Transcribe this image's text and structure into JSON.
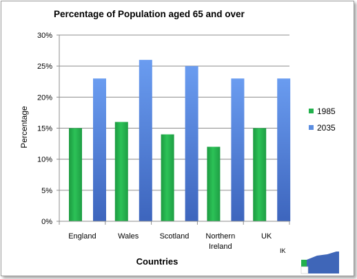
{
  "chart_data": {
    "type": "bar",
    "title": "Percentage of Population aged 65 and over",
    "xlabel": "Countries",
    "ylabel": "Percentage",
    "categories": [
      [
        "England"
      ],
      [
        "Wales"
      ],
      [
        "Scotland"
      ],
      [
        "Northern",
        "Ireland"
      ],
      [
        "UK"
      ]
    ],
    "series": [
      {
        "name": "1985",
        "values": [
          15,
          16,
          14,
          12,
          15
        ],
        "color": "#22b14c"
      },
      {
        "name": "2035",
        "values": [
          23,
          26,
          25,
          23,
          23
        ],
        "color": "#5b8de0"
      }
    ],
    "ylim": [
      0,
      30
    ],
    "yticks": [
      "0%",
      "5%",
      "10%",
      "15%",
      "20%",
      "25%",
      "30%"
    ],
    "grid": true,
    "legend_position": "right"
  },
  "stray_text": "IK"
}
